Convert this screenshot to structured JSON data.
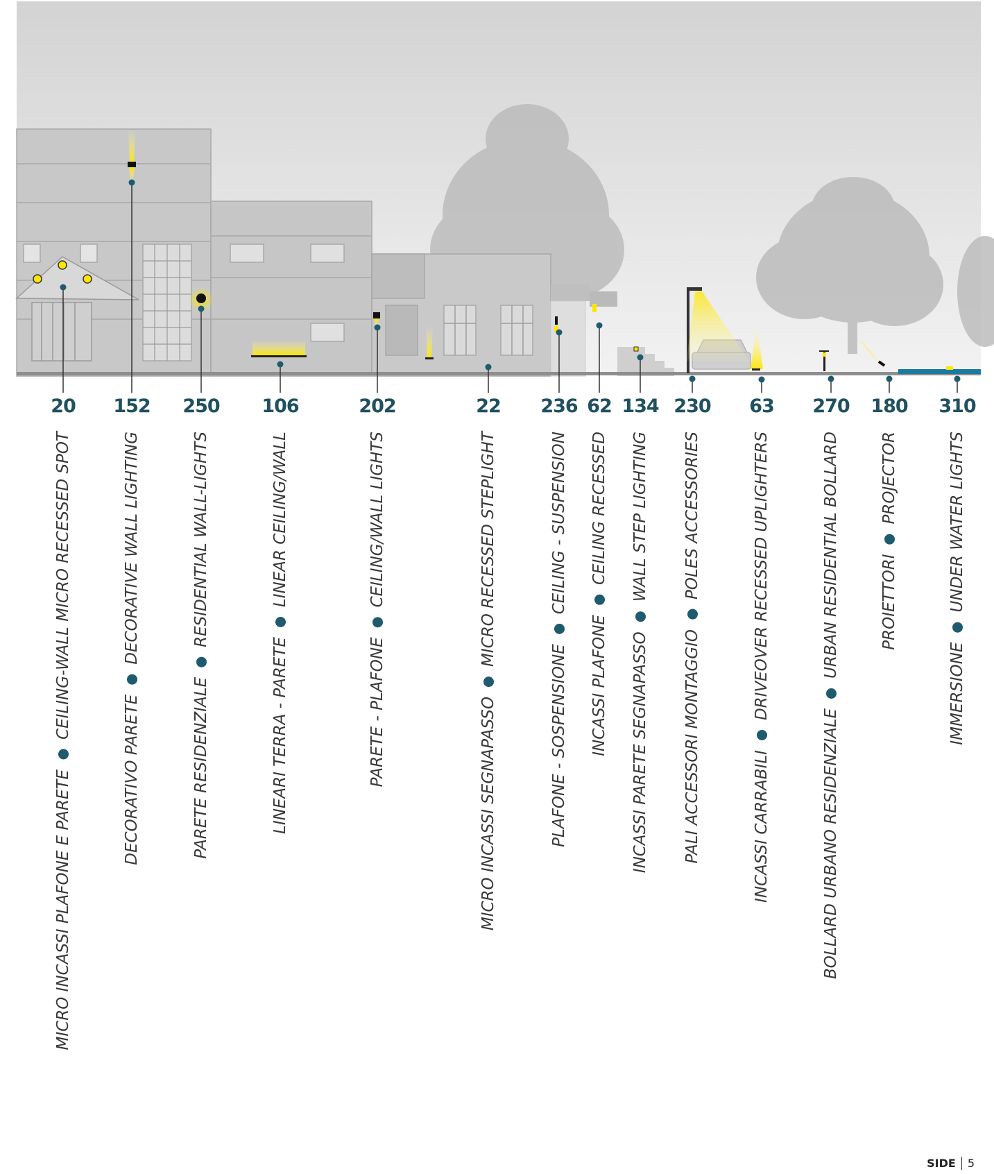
{
  "items": [
    {
      "code": "20",
      "it": "MICRO INCASSI PLAFONE E PARETE",
      "en": "CEILING-WALL MICRO RECESSED SPOT"
    },
    {
      "code": "152",
      "it": "DECORATIVO PARETE",
      "en": "DECORATIVE WALL LIGHTING"
    },
    {
      "code": "250",
      "it": "PARETE RESIDENZIALE",
      "en": "RESIDENTIAL WALL-LIGHTS"
    },
    {
      "code": "106",
      "it": "LINEARI TERRA - PARETE",
      "en": "LINEAR CEILING/WALL"
    },
    {
      "code": "202",
      "it": "PARETE - PLAFONE",
      "en": "CEILING/WALL LIGHTS"
    },
    {
      "code": "22",
      "it": "MICRO INCASSI SEGNAPASSO",
      "en": "MICRO RECESSED STEPLIGHT"
    },
    {
      "code": "236",
      "it": "PLAFONE - SOSPENSIONE",
      "en": "CEILING - SUSPENSION"
    },
    {
      "code": "62",
      "it": "INCASSI PLAFONE",
      "en": "CEILING RECESSED"
    },
    {
      "code": "134",
      "it": "INCASSI PARETE SEGNAPASSO",
      "en": "WALL STEP LIGHTING"
    },
    {
      "code": "230",
      "it": "PALI ACCESSORI MONTAGGIO",
      "en": "POLES ACCESSORIES"
    },
    {
      "code": "63",
      "it": "INCASSI CARRABILI",
      "en": "DRIVEOVER RECESSED UPLIGHTERS"
    },
    {
      "code": "270",
      "it": "BOLLARD URBANO RESIDENZIALE",
      "en": "URBAN RESIDENTIAL BOLLARD"
    },
    {
      "code": "180",
      "it": "PROIETTORI",
      "en": "PROJECTOR"
    },
    {
      "code": "310",
      "it": "IMMERSIONE",
      "en": "UNDER WATER LIGHTS"
    }
  ],
  "footer": {
    "label": "SIDE",
    "page": "5"
  },
  "colors": {
    "accent": "#1e5b6e",
    "number": "#1f5160",
    "light": "#ffe600"
  }
}
